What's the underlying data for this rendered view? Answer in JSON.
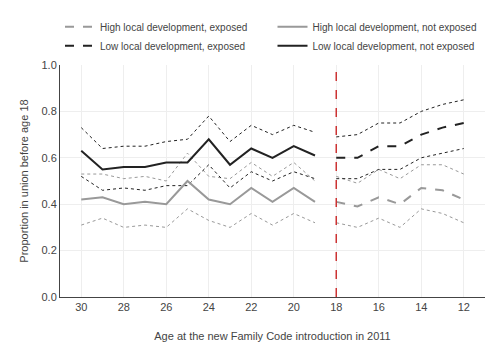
{
  "chart_data": {
    "type": "line",
    "xlabel": "Age at the new Family Code introduction in 2011",
    "ylabel": "Proportion in union before age 18",
    "x": [
      30,
      29,
      28,
      27,
      26,
      25,
      24,
      23,
      22,
      21,
      20,
      19,
      18,
      17,
      16,
      15,
      14,
      13,
      12
    ],
    "series": [
      {
        "name": "High local development, exposed",
        "color": "#999999",
        "line_style": "dashed",
        "values": [
          null,
          null,
          null,
          null,
          null,
          null,
          null,
          null,
          null,
          null,
          null,
          null,
          0.41,
          0.39,
          0.43,
          0.4,
          0.47,
          0.46,
          0.42
        ],
        "lo": [
          null,
          null,
          null,
          null,
          null,
          null,
          null,
          null,
          null,
          null,
          null,
          null,
          0.32,
          0.3,
          0.34,
          0.3,
          0.38,
          0.36,
          0.32
        ],
        "hi": [
          null,
          null,
          null,
          null,
          null,
          null,
          null,
          null,
          null,
          null,
          null,
          null,
          0.52,
          0.49,
          0.55,
          0.51,
          0.57,
          0.57,
          0.53
        ]
      },
      {
        "name": "High local development, not exposed",
        "color": "#999999",
        "line_style": "solid",
        "values": [
          0.42,
          0.43,
          0.4,
          0.41,
          0.4,
          0.5,
          0.42,
          0.4,
          0.47,
          0.41,
          0.47,
          0.41,
          null,
          null,
          null,
          null,
          null,
          null,
          null
        ],
        "lo": [
          0.31,
          0.34,
          0.3,
          0.31,
          0.3,
          0.38,
          0.33,
          0.3,
          0.36,
          0.31,
          0.36,
          0.32,
          null,
          null,
          null,
          null,
          null,
          null,
          null
        ],
        "hi": [
          0.53,
          0.53,
          0.51,
          0.52,
          0.5,
          0.62,
          0.52,
          0.51,
          0.58,
          0.52,
          0.58,
          0.5,
          null,
          null,
          null,
          null,
          null,
          null,
          null
        ]
      },
      {
        "name": "Low local development, exposed",
        "color": "#222222",
        "line_style": "dashed",
        "values": [
          null,
          null,
          null,
          null,
          null,
          null,
          null,
          null,
          null,
          null,
          null,
          null,
          0.6,
          0.6,
          0.65,
          0.65,
          0.7,
          0.73,
          0.75
        ],
        "lo": [
          null,
          null,
          null,
          null,
          null,
          null,
          null,
          null,
          null,
          null,
          null,
          null,
          0.51,
          0.51,
          0.55,
          0.55,
          0.6,
          0.62,
          0.64
        ],
        "hi": [
          null,
          null,
          null,
          null,
          null,
          null,
          null,
          null,
          null,
          null,
          null,
          null,
          0.69,
          0.7,
          0.75,
          0.75,
          0.8,
          0.83,
          0.85
        ]
      },
      {
        "name": "Low local development, not exposed",
        "color": "#222222",
        "line_style": "solid",
        "values": [
          0.63,
          0.55,
          0.56,
          0.56,
          0.58,
          0.58,
          0.68,
          0.57,
          0.64,
          0.6,
          0.65,
          0.61,
          null,
          null,
          null,
          null,
          null,
          null,
          null
        ],
        "lo": [
          0.52,
          0.46,
          0.47,
          0.46,
          0.48,
          0.48,
          0.57,
          0.47,
          0.54,
          0.5,
          0.54,
          0.51,
          null,
          null,
          null,
          null,
          null,
          null,
          null
        ],
        "hi": [
          0.73,
          0.64,
          0.65,
          0.65,
          0.67,
          0.68,
          0.78,
          0.67,
          0.74,
          0.7,
          0.74,
          0.71,
          null,
          null,
          null,
          null,
          null,
          null,
          null
        ]
      }
    ],
    "reference_lines": [
      {
        "x": 18,
        "color": "#cc3333",
        "line_style": "dashed"
      }
    ],
    "xlim": [
      31,
      11
    ],
    "xticks": [
      30,
      28,
      26,
      24,
      22,
      20,
      18,
      16,
      14,
      12
    ],
    "ylim": [
      0,
      1
    ],
    "yticks": [
      {
        "value": 0,
        "label": "0.0"
      },
      0.2,
      0.4,
      0.6,
      0.8,
      {
        "value": 1,
        "label": "1.0"
      }
    ],
    "grid": true,
    "legend": "top"
  }
}
